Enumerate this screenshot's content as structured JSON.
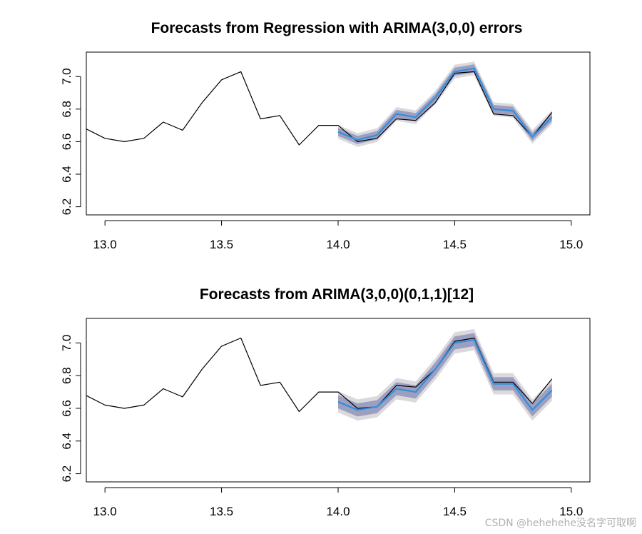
{
  "chart_data": [
    {
      "type": "line",
      "title": "Forecasts from Regression with ARIMA(3,0,0) errors",
      "xlabel": "",
      "ylabel": "",
      "xlim": [
        12.92,
        15.08
      ],
      "ylim": [
        6.15,
        7.15
      ],
      "xticks": [
        13.0,
        13.5,
        14.0,
        14.5,
        15.0
      ],
      "xtick_labels": [
        "13.0",
        "13.5",
        "14.0",
        "14.5",
        "15.0"
      ],
      "yticks": [
        6.2,
        6.4,
        6.6,
        6.8,
        7.0
      ],
      "ytick_labels": [
        "6.2",
        "6.4",
        "6.6",
        "6.8",
        "7.0"
      ],
      "grid": false,
      "series": [
        {
          "role": "observed",
          "color": "#000000",
          "x": [
            12.917,
            13.0,
            13.083,
            13.167,
            13.25,
            13.333,
            13.417,
            13.5,
            13.583,
            13.667,
            13.75,
            13.833,
            13.917,
            14.0,
            14.083,
            14.167,
            14.25,
            14.333,
            14.417,
            14.5,
            14.583,
            14.667,
            14.75,
            14.833,
            14.917
          ],
          "y": [
            6.68,
            6.62,
            6.6,
            6.62,
            6.72,
            6.67,
            6.84,
            6.98,
            7.03,
            6.74,
            6.76,
            6.58,
            6.7,
            6.7,
            6.6,
            6.62,
            6.74,
            6.73,
            6.84,
            7.02,
            7.03,
            6.77,
            6.76,
            6.63,
            6.78
          ]
        },
        {
          "role": "forecast",
          "color": "#2e8fe0",
          "x": [
            14.0,
            14.083,
            14.167,
            14.25,
            14.333,
            14.417,
            14.5,
            14.583,
            14.667,
            14.75,
            14.833,
            14.917
          ],
          "y": [
            6.66,
            6.61,
            6.64,
            6.77,
            6.75,
            6.87,
            7.03,
            7.05,
            6.8,
            6.79,
            6.63,
            6.75
          ],
          "pi80": 0.025,
          "pi95": 0.042
        }
      ],
      "band_colors": {
        "pi80": "#9e9ebf",
        "pi95": "#d9d9de"
      }
    },
    {
      "type": "line",
      "title": "Forecasts from ARIMA(3,0,0)(0,1,1)[12]",
      "xlabel": "",
      "ylabel": "",
      "xlim": [
        12.92,
        15.08
      ],
      "ylim": [
        6.15,
        7.15
      ],
      "xticks": [
        13.0,
        13.5,
        14.0,
        14.5,
        15.0
      ],
      "xtick_labels": [
        "13.0",
        "13.5",
        "14.0",
        "14.5",
        "15.0"
      ],
      "yticks": [
        6.2,
        6.4,
        6.6,
        6.8,
        7.0
      ],
      "ytick_labels": [
        "6.2",
        "6.4",
        "6.6",
        "6.8",
        "7.0"
      ],
      "grid": false,
      "series": [
        {
          "role": "observed",
          "color": "#000000",
          "x": [
            12.917,
            13.0,
            13.083,
            13.167,
            13.25,
            13.333,
            13.417,
            13.5,
            13.583,
            13.667,
            13.75,
            13.833,
            13.917,
            14.0,
            14.083,
            14.167,
            14.25,
            14.333,
            14.417,
            14.5,
            14.583,
            14.667,
            14.75,
            14.833,
            14.917
          ],
          "y": [
            6.68,
            6.62,
            6.6,
            6.62,
            6.72,
            6.67,
            6.84,
            6.98,
            7.03,
            6.74,
            6.76,
            6.58,
            6.7,
            6.7,
            6.6,
            6.61,
            6.74,
            6.73,
            6.84,
            7.01,
            7.03,
            6.76,
            6.76,
            6.63,
            6.78
          ]
        },
        {
          "role": "forecast",
          "color": "#2e8fe0",
          "x": [
            14.0,
            14.083,
            14.167,
            14.25,
            14.333,
            14.417,
            14.5,
            14.583,
            14.667,
            14.75,
            14.833,
            14.917
          ],
          "y": [
            6.64,
            6.59,
            6.61,
            6.72,
            6.7,
            6.84,
            7.0,
            7.02,
            6.75,
            6.75,
            6.59,
            6.71
          ],
          "pi80": 0.04,
          "pi95": 0.065
        }
      ],
      "band_colors": {
        "pi80": "#9e9ebf",
        "pi95": "#d9d9de"
      }
    }
  ],
  "watermark": "CSDN @hehehehe没名字可取啊"
}
